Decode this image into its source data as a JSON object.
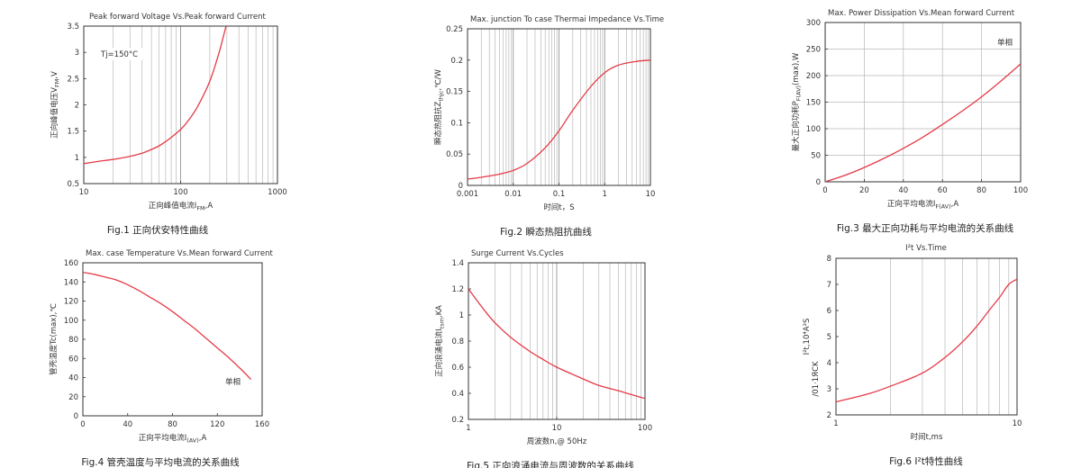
{
  "colors": {
    "curve": "#e53a46",
    "grid": "#b8b8b8",
    "frame": "#333333"
  },
  "chart_data": [
    {
      "type": "line",
      "title": "Peak forward Voltage Vs.Peak forward Current",
      "xlabel": "正向峰值电流I",
      "xlabel_sub": "FM",
      "xlabel_tail": ",A",
      "ylabel": "正向峰值电压V",
      "ylabel_sub": "FM",
      "ylabel_tail": ",V",
      "xscale": "log",
      "xlim": [
        10,
        1000
      ],
      "ylim": [
        0.5,
        3.5
      ],
      "xticks": [
        10,
        100,
        1000
      ],
      "xtick_labels": [
        "10",
        "100",
        "1000"
      ],
      "yticks": [
        0.5,
        1,
        1.5,
        2,
        2.5,
        3,
        3.5
      ],
      "ytick_labels": [
        "0.5",
        "1",
        "1.5",
        "2",
        "2.5",
        "3",
        "3.5"
      ],
      "grid": "log-x",
      "annotation": "Tj=150°C",
      "caption": "Fig.1 正向伏安特性曲线",
      "series": [
        {
          "x": [
            10,
            15,
            20,
            30,
            40,
            50,
            60,
            70,
            80,
            100,
            120,
            150,
            200,
            250,
            300,
            350
          ],
          "y": [
            0.88,
            0.93,
            0.96,
            1.02,
            1.08,
            1.15,
            1.22,
            1.3,
            1.38,
            1.53,
            1.7,
            1.97,
            2.45,
            3.0,
            3.55,
            3.9
          ]
        }
      ]
    },
    {
      "type": "line",
      "title": "Max. junction To case Thermai Impedance Vs.Time",
      "xlabel": "时间t，S",
      "ylabel": "瞬态热阻抗Z",
      "ylabel_sub": "thjc",
      "ylabel_tail": ",℃/W",
      "xscale": "log",
      "xlim": [
        0.001,
        10
      ],
      "ylim": [
        0,
        0.25
      ],
      "xticks": [
        0.001,
        0.01,
        0.1,
        1,
        10
      ],
      "xtick_labels": [
        "0.001",
        "0.01",
        "0.1",
        "1",
        "10"
      ],
      "yticks": [
        0,
        0.05,
        0.1,
        0.15,
        0.2,
        0.25
      ],
      "ytick_labels": [
        "0",
        "0.05",
        "0.1",
        "0.15",
        "0.2",
        "0.25"
      ],
      "grid": "log-x",
      "caption": "Fig.2 瞬态热阻抗曲线",
      "series": [
        {
          "x": [
            0.001,
            0.002,
            0.005,
            0.01,
            0.02,
            0.05,
            0.1,
            0.2,
            0.5,
            1,
            2,
            5,
            10
          ],
          "y": [
            0.01,
            0.013,
            0.018,
            0.024,
            0.035,
            0.06,
            0.087,
            0.12,
            0.158,
            0.18,
            0.192,
            0.198,
            0.2
          ]
        }
      ]
    },
    {
      "type": "line",
      "title": "Max. Power Dissipation Vs.Mean forward Current",
      "xlabel": "正向平均电流I",
      "xlabel_sub": "F(AV)",
      "xlabel_tail": ",A",
      "ylabel": "最大正向功耗P",
      "ylabel_sub": "F(AV)",
      "ylabel_tail": "(max),W",
      "xscale": "linear",
      "xlim": [
        0,
        100
      ],
      "ylim": [
        0,
        300
      ],
      "xticks": [
        0,
        20,
        40,
        60,
        80,
        100
      ],
      "xtick_labels": [
        "0",
        "20",
        "40",
        "60",
        "80",
        "100"
      ],
      "yticks": [
        0,
        50,
        100,
        150,
        200,
        250,
        300
      ],
      "ytick_labels": [
        "0",
        "50",
        "100",
        "150",
        "200",
        "250",
        "300"
      ],
      "grid": "linear",
      "annotation": "单相",
      "caption": "Fig.3 最大正向功耗与平均电流的关系曲线",
      "series": [
        {
          "x": [
            0,
            10,
            20,
            30,
            40,
            50,
            60,
            70,
            80,
            90,
            100
          ],
          "y": [
            0,
            12,
            27,
            44,
            63,
            84,
            108,
            133,
            160,
            190,
            222
          ]
        }
      ]
    },
    {
      "type": "line",
      "title": "Max. case Temperature Vs.Mean forward Current",
      "xlabel": "正向平均电流I",
      "xlabel_sub": "(AV)",
      "xlabel_tail": ",A",
      "ylabel": "管壳温度Tc(max),℃",
      "xscale": "linear",
      "xlim": [
        0,
        160
      ],
      "ylim": [
        0,
        160
      ],
      "xticks": [
        0,
        40,
        80,
        120,
        160
      ],
      "xtick_labels": [
        "0",
        "40",
        "80",
        "120",
        "160"
      ],
      "yticks": [
        0,
        20,
        40,
        60,
        80,
        100,
        120,
        140,
        160
      ],
      "ytick_labels": [
        "0",
        "20",
        "40",
        "60",
        "80",
        "100",
        "120",
        "140",
        "160"
      ],
      "grid": "none",
      "annotation": "单相",
      "caption": "Fig.4 管壳温度与平均电流的关系曲线",
      "series": [
        {
          "x": [
            0,
            10,
            20,
            30,
            40,
            50,
            60,
            70,
            80,
            90,
            100,
            110,
            120,
            130,
            140,
            150
          ],
          "y": [
            150,
            148,
            145,
            142,
            137,
            131,
            124,
            117,
            109,
            100,
            91,
            81,
            71,
            61,
            50,
            38
          ]
        }
      ]
    },
    {
      "type": "line",
      "title": "Surge Current Vs.Cycles",
      "xlabel": "周波数n,@ 50Hz",
      "ylabel": "正向浪涌电流I",
      "ylabel_sub": "tsm",
      "ylabel_tail": ",KA",
      "xscale": "log",
      "xlim": [
        1,
        100
      ],
      "ylim": [
        0.2,
        1.4
      ],
      "xticks": [
        1,
        10,
        100
      ],
      "xtick_labels": [
        "1",
        "10",
        "100"
      ],
      "yticks": [
        0.2,
        0.4,
        0.6,
        0.8,
        1,
        1.2,
        1.4
      ],
      "ytick_labels": [
        "0.2",
        "0.4",
        "0.6",
        "0.8",
        "1",
        "1.2",
        "1.4"
      ],
      "grid": "log-x",
      "caption": "Fig.5 正向浪涌电流与周波数的关系曲线",
      "series": [
        {
          "x": [
            1,
            1.5,
            2,
            3,
            5,
            7,
            10,
            20,
            30,
            50,
            70,
            100
          ],
          "y": [
            1.2,
            1.04,
            0.94,
            0.83,
            0.72,
            0.66,
            0.6,
            0.51,
            0.46,
            0.42,
            0.39,
            0.36
          ]
        }
      ]
    },
    {
      "type": "line",
      "title": "I²t  Vs.Time",
      "xlabel": "时间t,ms",
      "ylabel": "I²t,10⁴A²S",
      "ylabel_extra": "/01·1ЯCK",
      "xscale": "log",
      "xlim": [
        1,
        10
      ],
      "ylim": [
        2,
        8
      ],
      "xticks": [
        1,
        10
      ],
      "xtick_labels": [
        "1",
        "10"
      ],
      "yticks": [
        2,
        3,
        4,
        5,
        6,
        7,
        8
      ],
      "ytick_labels": [
        "2",
        "3",
        "4",
        "5",
        "6",
        "7",
        "8"
      ],
      "grid": "log-x",
      "caption": "Fig.6 I²t特性曲线",
      "series": [
        {
          "x": [
            1,
            1.5,
            2,
            3,
            4,
            5,
            6,
            7,
            8,
            9,
            10
          ],
          "y": [
            2.5,
            2.8,
            3.1,
            3.6,
            4.2,
            4.8,
            5.4,
            6.0,
            6.5,
            7.0,
            7.2
          ]
        }
      ]
    }
  ]
}
